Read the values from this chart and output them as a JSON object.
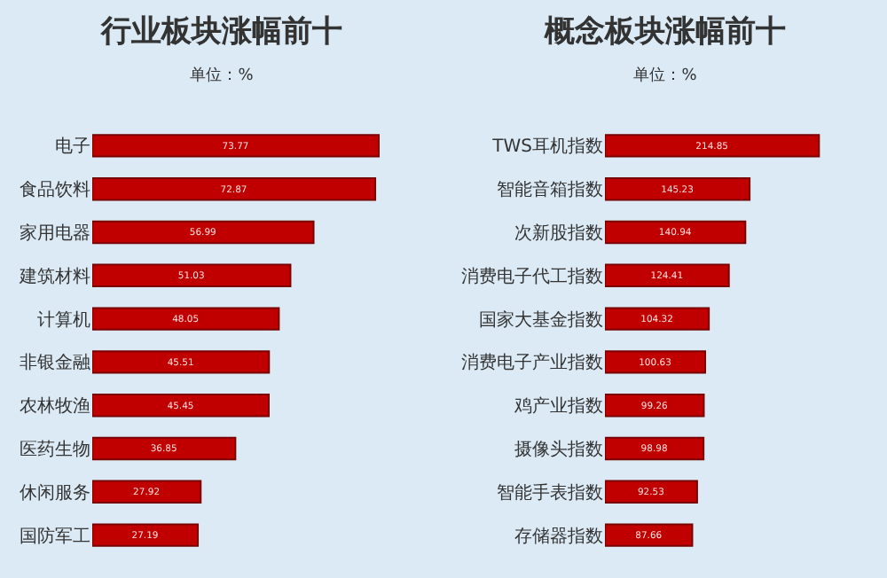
{
  "chart_data": [
    {
      "type": "bar",
      "orientation": "horizontal",
      "title": "行业板块涨幅前十",
      "subtitle": "单位：%",
      "categories": [
        "电子",
        "食品饮料",
        "家用电器",
        "建筑材料",
        "计算机",
        "非银金融",
        "农林牧渔",
        "医药生物",
        "休闲服务",
        "国防军工"
      ],
      "values": [
        73.77,
        72.87,
        56.99,
        51.03,
        48.05,
        45.51,
        45.45,
        36.85,
        27.92,
        27.19
      ],
      "color": "#c00000",
      "data_labels": true,
      "tick_labels": "y",
      "grid": false,
      "legend": false
    },
    {
      "type": "bar",
      "orientation": "horizontal",
      "title": "概念板块涨幅前十",
      "subtitle": "单位：%",
      "categories": [
        "TWS耳机指数",
        "智能音箱指数",
        "次新股指数",
        "消费电子代工指数",
        "国家大基金指数",
        "消费电子产业指数",
        "鸡产业指数",
        "摄像头指数",
        "智能手表指数",
        "存储器指数"
      ],
      "values": [
        214.85,
        145.23,
        140.94,
        124.41,
        104.32,
        100.63,
        99.26,
        98.98,
        92.53,
        87.66
      ],
      "color": "#c00000",
      "data_labels": true,
      "tick_labels": "y",
      "grid": false,
      "legend": false
    }
  ]
}
